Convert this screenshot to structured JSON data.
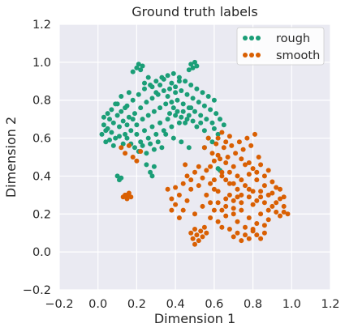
{
  "chart_data": {
    "type": "scatter",
    "title": "Ground truth labels",
    "xlabel": "Dimension 1",
    "ylabel": "Dimension 2",
    "xlim": [
      -0.2,
      1.2
    ],
    "ylim": [
      -0.2,
      1.2
    ],
    "xticks": [
      "−0.2",
      "0.0",
      "0.2",
      "0.4",
      "0.6",
      "0.8",
      "1.0",
      "1.2"
    ],
    "yticks": [
      "−0.2",
      "0.0",
      "0.2",
      "0.4",
      "0.6",
      "0.8",
      "1.0",
      "1.2"
    ],
    "grid": true,
    "background": "#EAEAF2",
    "legend_position": "top-right",
    "series": [
      {
        "name": "rough",
        "color": "#1B9E77",
        "points": [
          [
            0.02,
            0.62
          ],
          [
            0.03,
            0.67
          ],
          [
            0.04,
            0.58
          ],
          [
            0.05,
            0.65
          ],
          [
            0.06,
            0.7
          ],
          [
            0.07,
            0.63
          ],
          [
            0.08,
            0.68
          ],
          [
            0.09,
            0.6
          ],
          [
            0.1,
            0.72
          ],
          [
            0.11,
            0.66
          ],
          [
            0.12,
            0.74
          ],
          [
            0.13,
            0.69
          ],
          [
            0.14,
            0.62
          ],
          [
            0.15,
            0.77
          ],
          [
            0.16,
            0.71
          ],
          [
            0.17,
            0.64
          ],
          [
            0.18,
            0.8
          ],
          [
            0.19,
            0.73
          ],
          [
            0.2,
            0.67
          ],
          [
            0.21,
            0.83
          ],
          [
            0.22,
            0.76
          ],
          [
            0.23,
            0.7
          ],
          [
            0.24,
            0.86
          ],
          [
            0.25,
            0.79
          ],
          [
            0.26,
            0.72
          ],
          [
            0.27,
            0.88
          ],
          [
            0.28,
            0.81
          ],
          [
            0.29,
            0.74
          ],
          [
            0.3,
            0.9
          ],
          [
            0.31,
            0.83
          ],
          [
            0.32,
            0.76
          ],
          [
            0.33,
            0.92
          ],
          [
            0.34,
            0.85
          ],
          [
            0.35,
            0.78
          ],
          [
            0.36,
            0.93
          ],
          [
            0.37,
            0.86
          ],
          [
            0.38,
            0.79
          ],
          [
            0.39,
            0.94
          ],
          [
            0.4,
            0.87
          ],
          [
            0.41,
            0.8
          ],
          [
            0.42,
            0.92
          ],
          [
            0.43,
            0.85
          ],
          [
            0.44,
            0.78
          ],
          [
            0.45,
            0.9
          ],
          [
            0.46,
            0.83
          ],
          [
            0.47,
            0.76
          ],
          [
            0.48,
            0.88
          ],
          [
            0.49,
            0.81
          ],
          [
            0.5,
            0.74
          ],
          [
            0.51,
            0.86
          ],
          [
            0.52,
            0.79
          ],
          [
            0.53,
            0.72
          ],
          [
            0.54,
            0.84
          ],
          [
            0.55,
            0.77
          ],
          [
            0.56,
            0.7
          ],
          [
            0.57,
            0.82
          ],
          [
            0.58,
            0.75
          ],
          [
            0.59,
            0.68
          ],
          [
            0.6,
            0.8
          ],
          [
            0.61,
            0.73
          ],
          [
            0.2,
            0.97
          ],
          [
            0.21,
            0.99
          ],
          [
            0.22,
            0.96
          ],
          [
            0.18,
            0.95
          ],
          [
            0.23,
            0.98
          ],
          [
            0.48,
            0.99
          ],
          [
            0.49,
            0.97
          ],
          [
            0.5,
            1.0
          ],
          [
            0.47,
            0.96
          ],
          [
            0.51,
            0.98
          ],
          [
            0.1,
            0.78
          ],
          [
            0.12,
            0.82
          ],
          [
            0.14,
            0.76
          ],
          [
            0.16,
            0.84
          ],
          [
            0.18,
            0.7
          ],
          [
            0.2,
            0.62
          ],
          [
            0.22,
            0.58
          ],
          [
            0.24,
            0.64
          ],
          [
            0.26,
            0.6
          ],
          [
            0.28,
            0.66
          ],
          [
            0.3,
            0.62
          ],
          [
            0.32,
            0.68
          ],
          [
            0.34,
            0.64
          ],
          [
            0.36,
            0.7
          ],
          [
            0.38,
            0.66
          ],
          [
            0.4,
            0.72
          ],
          [
            0.42,
            0.68
          ],
          [
            0.44,
            0.74
          ],
          [
            0.46,
            0.7
          ],
          [
            0.48,
            0.76
          ],
          [
            0.15,
            0.6
          ],
          [
            0.17,
            0.57
          ],
          [
            0.19,
            0.55
          ],
          [
            0.21,
            0.53
          ],
          [
            0.23,
            0.56
          ],
          [
            0.25,
            0.52
          ],
          [
            0.27,
            0.57
          ],
          [
            0.29,
            0.54
          ],
          [
            0.31,
            0.58
          ],
          [
            0.33,
            0.55
          ],
          [
            0.24,
            0.89
          ],
          [
            0.26,
            0.92
          ],
          [
            0.28,
            0.87
          ],
          [
            0.3,
            0.84
          ],
          [
            0.32,
            0.88
          ],
          [
            0.34,
            0.91
          ],
          [
            0.36,
            0.82
          ],
          [
            0.38,
            0.89
          ],
          [
            0.4,
            0.84
          ],
          [
            0.42,
            0.9
          ],
          [
            0.08,
            0.56
          ],
          [
            0.06,
            0.59
          ],
          [
            0.04,
            0.64
          ],
          [
            0.03,
            0.71
          ],
          [
            0.05,
            0.73
          ],
          [
            0.07,
            0.75
          ],
          [
            0.09,
            0.78
          ],
          [
            0.11,
            0.61
          ],
          [
            0.13,
            0.57
          ],
          [
            0.15,
            0.67
          ],
          [
            0.37,
            0.73
          ],
          [
            0.39,
            0.76
          ],
          [
            0.41,
            0.74
          ],
          [
            0.43,
            0.71
          ],
          [
            0.45,
            0.68
          ],
          [
            0.47,
            0.72
          ],
          [
            0.49,
            0.69
          ],
          [
            0.51,
            0.66
          ],
          [
            0.53,
            0.68
          ],
          [
            0.55,
            0.64
          ],
          [
            0.1,
            0.4
          ],
          [
            0.11,
            0.38
          ],
          [
            0.12,
            0.39
          ],
          [
            0.25,
            0.46
          ],
          [
            0.27,
            0.42
          ],
          [
            0.29,
            0.45
          ],
          [
            0.62,
            0.44
          ],
          [
            0.63,
            0.43
          ],
          [
            0.28,
            0.4
          ],
          [
            0.55,
            0.55
          ],
          [
            0.57,
            0.6
          ],
          [
            0.59,
            0.58
          ],
          [
            0.6,
            0.65
          ],
          [
            0.62,
            0.62
          ],
          [
            0.63,
            0.7
          ],
          [
            0.65,
            0.67
          ],
          [
            0.47,
            0.55
          ],
          [
            0.35,
            0.62
          ],
          [
            0.39,
            0.6
          ],
          [
            0.43,
            0.58
          ]
        ]
      },
      {
        "name": "smooth",
        "color": "#D95F02",
        "points": [
          [
            0.14,
            0.3
          ],
          [
            0.15,
            0.28
          ],
          [
            0.16,
            0.31
          ],
          [
            0.17,
            0.29
          ],
          [
            0.13,
            0.29
          ],
          [
            0.15,
            0.3
          ],
          [
            0.12,
            0.55
          ],
          [
            0.14,
            0.52
          ],
          [
            0.16,
            0.56
          ],
          [
            0.18,
            0.5
          ],
          [
            0.2,
            0.48
          ],
          [
            0.22,
            0.53
          ],
          [
            0.38,
            0.28
          ],
          [
            0.4,
            0.25
          ],
          [
            0.42,
            0.3
          ],
          [
            0.44,
            0.22
          ],
          [
            0.46,
            0.27
          ],
          [
            0.48,
            0.33
          ],
          [
            0.5,
            0.2
          ],
          [
            0.52,
            0.35
          ],
          [
            0.54,
            0.24
          ],
          [
            0.56,
            0.3
          ],
          [
            0.58,
            0.26
          ],
          [
            0.6,
            0.38
          ],
          [
            0.62,
            0.32
          ],
          [
            0.64,
            0.42
          ],
          [
            0.66,
            0.28
          ],
          [
            0.68,
            0.36
          ],
          [
            0.7,
            0.23
          ],
          [
            0.72,
            0.4
          ],
          [
            0.74,
            0.3
          ],
          [
            0.76,
            0.46
          ],
          [
            0.78,
            0.33
          ],
          [
            0.8,
            0.25
          ],
          [
            0.82,
            0.38
          ],
          [
            0.84,
            0.29
          ],
          [
            0.86,
            0.35
          ],
          [
            0.88,
            0.22
          ],
          [
            0.9,
            0.31
          ],
          [
            0.92,
            0.26
          ],
          [
            0.94,
            0.19
          ],
          [
            0.96,
            0.21
          ],
          [
            0.7,
            0.2
          ],
          [
            0.72,
            0.16
          ],
          [
            0.74,
            0.22
          ],
          [
            0.76,
            0.13
          ],
          [
            0.78,
            0.18
          ],
          [
            0.8,
            0.11
          ],
          [
            0.82,
            0.15
          ],
          [
            0.84,
            0.2
          ],
          [
            0.86,
            0.14
          ],
          [
            0.88,
            0.17
          ],
          [
            0.68,
            0.12
          ],
          [
            0.7,
            0.08
          ],
          [
            0.72,
            0.1
          ],
          [
            0.74,
            0.06
          ],
          [
            0.76,
            0.09
          ],
          [
            0.78,
            0.07
          ],
          [
            0.8,
            0.12
          ],
          [
            0.82,
            0.09
          ],
          [
            0.84,
            0.07
          ],
          [
            0.86,
            0.1
          ],
          [
            0.48,
            0.1
          ],
          [
            0.49,
            0.07
          ],
          [
            0.5,
            0.12
          ],
          [
            0.51,
            0.09
          ],
          [
            0.52,
            0.06
          ],
          [
            0.53,
            0.11
          ],
          [
            0.54,
            0.08
          ],
          [
            0.55,
            0.13
          ],
          [
            0.56,
            0.1
          ],
          [
            0.5,
            0.04
          ],
          [
            0.55,
            0.55
          ],
          [
            0.57,
            0.6
          ],
          [
            0.59,
            0.52
          ],
          [
            0.61,
            0.57
          ],
          [
            0.63,
            0.49
          ],
          [
            0.65,
            0.55
          ],
          [
            0.67,
            0.5
          ],
          [
            0.69,
            0.56
          ],
          [
            0.71,
            0.52
          ],
          [
            0.73,
            0.58
          ],
          [
            0.75,
            0.54
          ],
          [
            0.77,
            0.6
          ],
          [
            0.79,
            0.56
          ],
          [
            0.81,
            0.62
          ],
          [
            0.83,
            0.5
          ],
          [
            0.78,
            0.47
          ],
          [
            0.74,
            0.49
          ],
          [
            0.7,
            0.45
          ],
          [
            0.66,
            0.47
          ],
          [
            0.62,
            0.51
          ],
          [
            0.58,
            0.45
          ],
          [
            0.6,
            0.48
          ],
          [
            0.64,
            0.4
          ],
          [
            0.66,
            0.38
          ],
          [
            0.68,
            0.42
          ],
          [
            0.7,
            0.36
          ],
          [
            0.72,
            0.33
          ],
          [
            0.74,
            0.38
          ],
          [
            0.76,
            0.35
          ],
          [
            0.78,
            0.41
          ],
          [
            0.8,
            0.44
          ],
          [
            0.82,
            0.42
          ],
          [
            0.84,
            0.46
          ],
          [
            0.86,
            0.4
          ],
          [
            0.88,
            0.43
          ],
          [
            0.9,
            0.37
          ],
          [
            0.92,
            0.34
          ],
          [
            0.94,
            0.28
          ],
          [
            0.96,
            0.24
          ],
          [
            0.98,
            0.2
          ],
          [
            0.36,
            0.33
          ],
          [
            0.38,
            0.22
          ],
          [
            0.4,
            0.34
          ],
          [
            0.42,
            0.18
          ],
          [
            0.44,
            0.36
          ],
          [
            0.46,
            0.4
          ],
          [
            0.48,
            0.38
          ],
          [
            0.5,
            0.42
          ],
          [
            0.52,
            0.45
          ],
          [
            0.54,
            0.39
          ],
          [
            0.56,
            0.43
          ],
          [
            0.58,
            0.36
          ],
          [
            0.6,
            0.33
          ],
          [
            0.62,
            0.26
          ],
          [
            0.64,
            0.22
          ],
          [
            0.66,
            0.19
          ],
          [
            0.68,
            0.3
          ],
          [
            0.7,
            0.27
          ],
          [
            0.72,
            0.29
          ],
          [
            0.74,
            0.26
          ],
          [
            0.62,
            0.6
          ],
          [
            0.64,
            0.63
          ],
          [
            0.66,
            0.58
          ],
          [
            0.68,
            0.61
          ],
          [
            0.78,
            0.29
          ],
          [
            0.8,
            0.32
          ],
          [
            0.82,
            0.27
          ],
          [
            0.84,
            0.32
          ],
          [
            0.86,
            0.26
          ],
          [
            0.88,
            0.3
          ],
          [
            0.9,
            0.24
          ],
          [
            0.92,
            0.21
          ],
          [
            0.94,
            0.33
          ],
          [
            0.96,
            0.29
          ],
          [
            0.58,
            0.18
          ],
          [
            0.6,
            0.22
          ],
          [
            0.62,
            0.16
          ],
          [
            0.64,
            0.13
          ],
          [
            0.66,
            0.24
          ],
          [
            0.45,
            0.46
          ]
        ]
      }
    ]
  }
}
